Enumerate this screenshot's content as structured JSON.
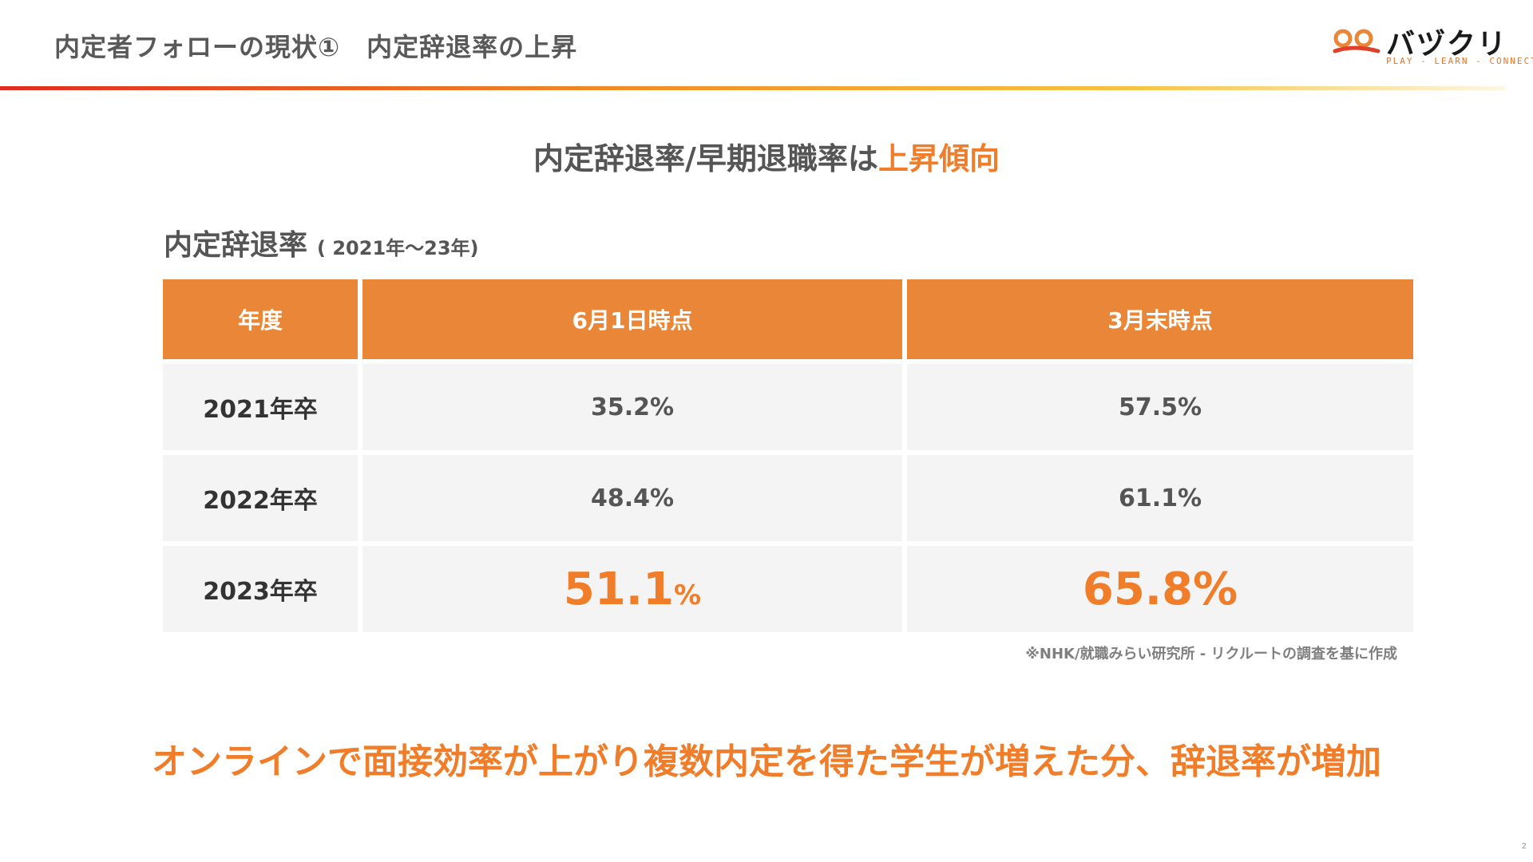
{
  "header": {
    "title": "内定者フォローの現状①　内定辞退率の上昇"
  },
  "logo": {
    "text": "バヅクリ",
    "tagline": "PLAY - LEARN - CONNECT",
    "icon": "logo-mark-icon"
  },
  "headline": {
    "prefix": "内定辞退率/早期退職率は",
    "emphasis": "上昇傾向"
  },
  "section": {
    "title": "内定辞退率",
    "range": "( 2021年～23年)"
  },
  "table": {
    "headers": [
      "年度",
      "6月1日時点",
      "3月末時点"
    ],
    "rows": [
      {
        "year": "2021年卒",
        "june": "35.2%",
        "march": "57.5%"
      },
      {
        "year": "2022年卒",
        "june": "48.4%",
        "march": "61.1%"
      },
      {
        "year": "2023年卒",
        "june_number": "51.1",
        "june_unit": "%",
        "march": "65.8%"
      }
    ]
  },
  "source_note": "※NHK/就職みらい研究所 - リクルートの調査を基に作成",
  "conclusion": "オンラインで面接効率が上がり複数内定を得た学生が増えた分、辞退率が増加",
  "page_number": "2",
  "colors": {
    "accent": "#ef7d2a",
    "header_fill": "#ea8637",
    "cell_fill": "#f4f4f4",
    "text": "#555555"
  }
}
